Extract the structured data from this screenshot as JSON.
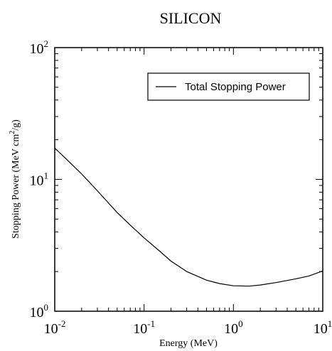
{
  "chart_data": {
    "type": "line",
    "title": "SILICON",
    "xlabel": "Energy (MeV)",
    "ylabel_main": "Stopping Power (MeV cm",
    "ylabel_sup": "2",
    "ylabel_tail": "/g)",
    "x_scale": "log",
    "y_scale": "log",
    "xlim": [
      0.01,
      10
    ],
    "ylim": [
      1,
      100
    ],
    "grid": false,
    "legend_position": "top-right",
    "x_ticks": [
      {
        "value": 0.01,
        "base": "10",
        "exp": "-2"
      },
      {
        "value": 0.1,
        "base": "10",
        "exp": "-1"
      },
      {
        "value": 1,
        "base": "10",
        "exp": "0"
      },
      {
        "value": 10,
        "base": "10",
        "exp": "1"
      }
    ],
    "y_ticks": [
      {
        "value": 1,
        "base": "10",
        "exp": "0"
      },
      {
        "value": 10,
        "base": "10",
        "exp": "1"
      },
      {
        "value": 100,
        "base": "10",
        "exp": "2"
      }
    ],
    "series": [
      {
        "name": "Total Stopping Power",
        "color": "#000000",
        "x": [
          0.01,
          0.015,
          0.02,
          0.03,
          0.05,
          0.07,
          0.1,
          0.15,
          0.2,
          0.3,
          0.5,
          0.7,
          1.0,
          1.5,
          2.0,
          3.0,
          5.0,
          7.0,
          10.0
        ],
        "y": [
          17.3,
          13.3,
          11.0,
          8.2,
          5.6,
          4.5,
          3.6,
          2.85,
          2.4,
          2.0,
          1.72,
          1.62,
          1.56,
          1.55,
          1.58,
          1.65,
          1.76,
          1.85,
          2.02
        ]
      }
    ]
  }
}
